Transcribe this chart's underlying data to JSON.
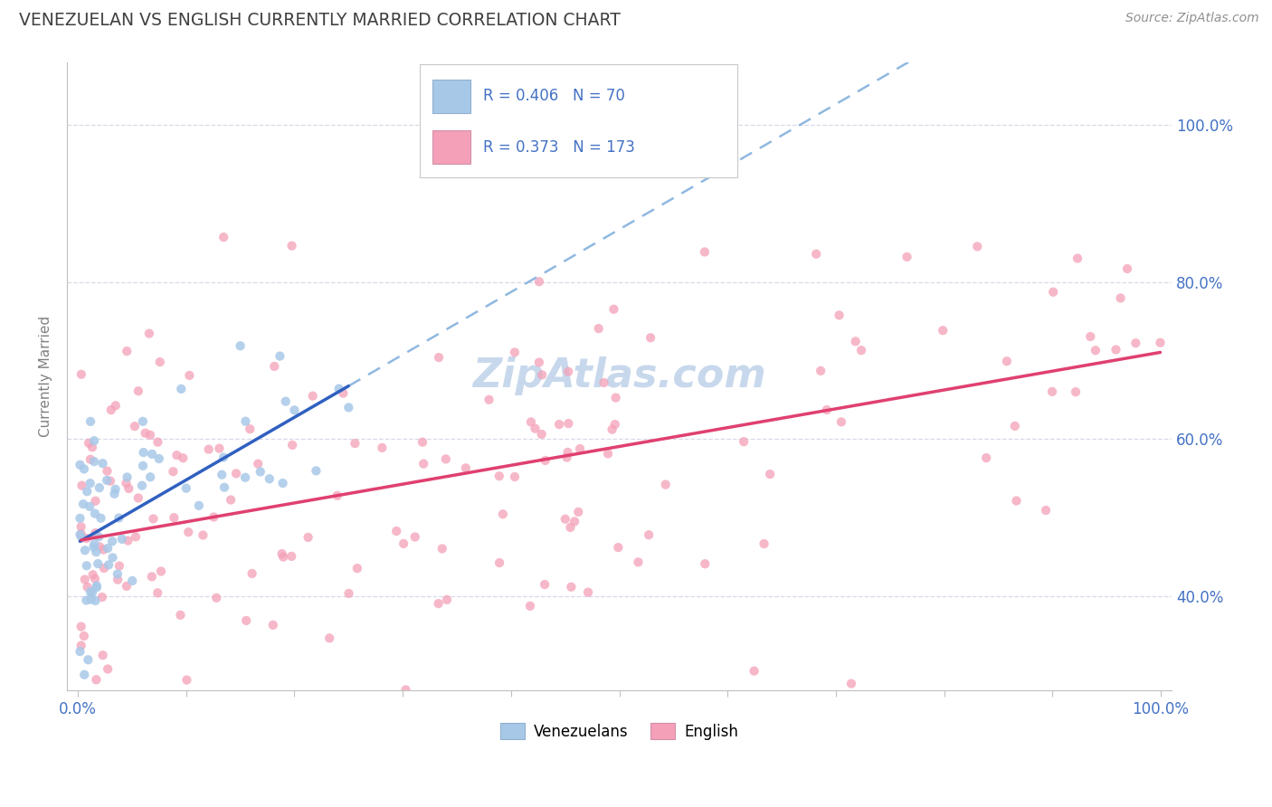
{
  "title": "VENEZUELAN VS ENGLISH CURRENTLY MARRIED CORRELATION CHART",
  "source": "Source: ZipAtlas.com",
  "ylabel": "Currently Married",
  "venezuelan_R": 0.406,
  "venezuelan_N": 70,
  "english_R": 0.373,
  "english_N": 173,
  "venezuelan_color": "#a8c8e8",
  "english_color": "#f4a0b8",
  "venezuelan_line_color": "#3060c0",
  "english_line_color": "#e04070",
  "dashed_line_color": "#90b8e0",
  "legend_venezuelan_label": "Venezuelans",
  "legend_english_label": "English",
  "background_color": "#ffffff",
  "title_color": "#404040",
  "source_color": "#909090",
  "grid_color": "#d8d8e8",
  "tick_color": "#4472c4",
  "ylabel_color": "#808080",
  "xlim": [
    0,
    100
  ],
  "ylim": [
    28,
    108
  ],
  "yticks": [
    40,
    60,
    80,
    100
  ],
  "xticks_show": [
    0,
    100
  ],
  "watermark": "ZipAtlas.com",
  "watermark_color": "#c8d8ec"
}
